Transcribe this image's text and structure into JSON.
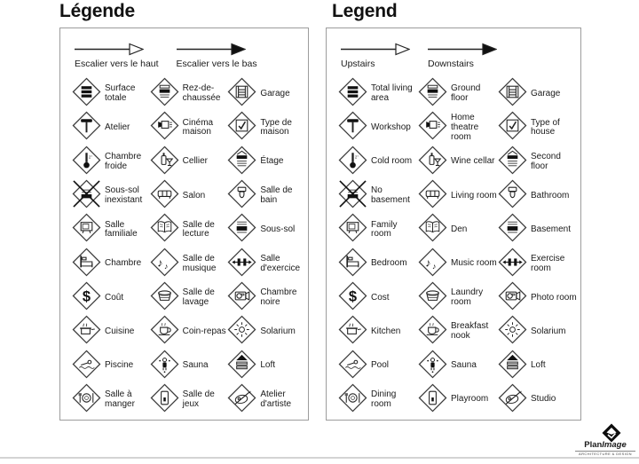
{
  "colors": {
    "ink": "#1a1a1a",
    "panel_border": "#9c9c9c",
    "divider": "#d4d4d4",
    "icon_stroke": "#222222"
  },
  "brand": {
    "plan": "Plan",
    "image": "Image",
    "tagline": "ARCHITECTURE & DESIGN"
  },
  "panels": [
    {
      "id": "fr",
      "title": "Légende",
      "arrows": [
        {
          "style": "open",
          "label": "Escalier vers le haut"
        },
        {
          "style": "solid",
          "label": "Escalier vers le bas"
        }
      ],
      "items": [
        {
          "icon": "floor-stack",
          "label": "Surface totale"
        },
        {
          "icon": "floor-ground",
          "label": "Rez-de-chaussée"
        },
        {
          "icon": "garage-door",
          "label": "Garage"
        },
        {
          "icon": "hammer",
          "label": "Atelier"
        },
        {
          "icon": "projector",
          "label": "Cinéma maison"
        },
        {
          "icon": "house-check",
          "label": "Type de maison"
        },
        {
          "icon": "thermometer",
          "label": "Chambre froide"
        },
        {
          "icon": "wine",
          "label": "Cellier"
        },
        {
          "icon": "floor-upper",
          "label": "Étage"
        },
        {
          "icon": "no-basement",
          "label": "Sous-sol inexistant"
        },
        {
          "icon": "sofa",
          "label": "Salon"
        },
        {
          "icon": "toilet",
          "label": "Salle de bain"
        },
        {
          "icon": "tv",
          "label": "Salle familiale"
        },
        {
          "icon": "open-book",
          "label": "Salle de lecture"
        },
        {
          "icon": "floor-basement",
          "label": "Sous-sol"
        },
        {
          "icon": "bed",
          "label": "Chambre"
        },
        {
          "icon": "music-notes",
          "label": "Salle de musique"
        },
        {
          "icon": "dumbbell",
          "label": "Salle d'exercice"
        },
        {
          "icon": "dollar",
          "label": "Coût"
        },
        {
          "icon": "laundry-basket",
          "label": "Salle de lavage"
        },
        {
          "icon": "camera",
          "label": "Chambre noire"
        },
        {
          "icon": "cooking-pot",
          "label": "Cuisine"
        },
        {
          "icon": "coffee-cup",
          "label": "Coin-repas"
        },
        {
          "icon": "sun",
          "label": "Solarium"
        },
        {
          "icon": "swimmer",
          "label": "Piscine"
        },
        {
          "icon": "sauna-person",
          "label": "Sauna"
        },
        {
          "icon": "floor-loft",
          "label": "Loft"
        },
        {
          "icon": "dining-plate",
          "label": "Salle à manger"
        },
        {
          "icon": "toy-block",
          "label": "Salle de jeux"
        },
        {
          "icon": "artist-palette",
          "label": "Atelier d'artiste"
        }
      ]
    },
    {
      "id": "en",
      "title": "Legend",
      "arrows": [
        {
          "style": "open",
          "label": "Upstairs"
        },
        {
          "style": "solid",
          "label": "Downstairs"
        }
      ],
      "items": [
        {
          "icon": "floor-stack",
          "label": "Total living area"
        },
        {
          "icon": "floor-ground",
          "label": "Ground floor"
        },
        {
          "icon": "garage-door",
          "label": "Garage"
        },
        {
          "icon": "hammer",
          "label": "Workshop"
        },
        {
          "icon": "projector",
          "label": "Home theatre room"
        },
        {
          "icon": "house-check",
          "label": "Type of house"
        },
        {
          "icon": "thermometer",
          "label": "Cold room"
        },
        {
          "icon": "wine",
          "label": "Wine cellar"
        },
        {
          "icon": "floor-upper",
          "label": "Second floor"
        },
        {
          "icon": "no-basement",
          "label": "No basement"
        },
        {
          "icon": "sofa",
          "label": "Living room"
        },
        {
          "icon": "toilet",
          "label": "Bathroom"
        },
        {
          "icon": "tv",
          "label": "Family room"
        },
        {
          "icon": "open-book",
          "label": "Den"
        },
        {
          "icon": "floor-basement",
          "label": "Basement"
        },
        {
          "icon": "bed",
          "label": "Bedroom"
        },
        {
          "icon": "music-notes",
          "label": "Music room"
        },
        {
          "icon": "dumbbell",
          "label": "Exercise room"
        },
        {
          "icon": "dollar",
          "label": "Cost"
        },
        {
          "icon": "laundry-basket",
          "label": "Laundry room"
        },
        {
          "icon": "camera",
          "label": "Photo room"
        },
        {
          "icon": "cooking-pot",
          "label": "Kitchen"
        },
        {
          "icon": "coffee-cup",
          "label": "Breakfast nook"
        },
        {
          "icon": "sun",
          "label": "Solarium"
        },
        {
          "icon": "swimmer",
          "label": "Pool"
        },
        {
          "icon": "sauna-person",
          "label": "Sauna"
        },
        {
          "icon": "floor-loft",
          "label": "Loft"
        },
        {
          "icon": "dining-plate",
          "label": "Dining room"
        },
        {
          "icon": "toy-block",
          "label": "Playroom"
        },
        {
          "icon": "artist-palette",
          "label": "Studio"
        }
      ]
    }
  ]
}
